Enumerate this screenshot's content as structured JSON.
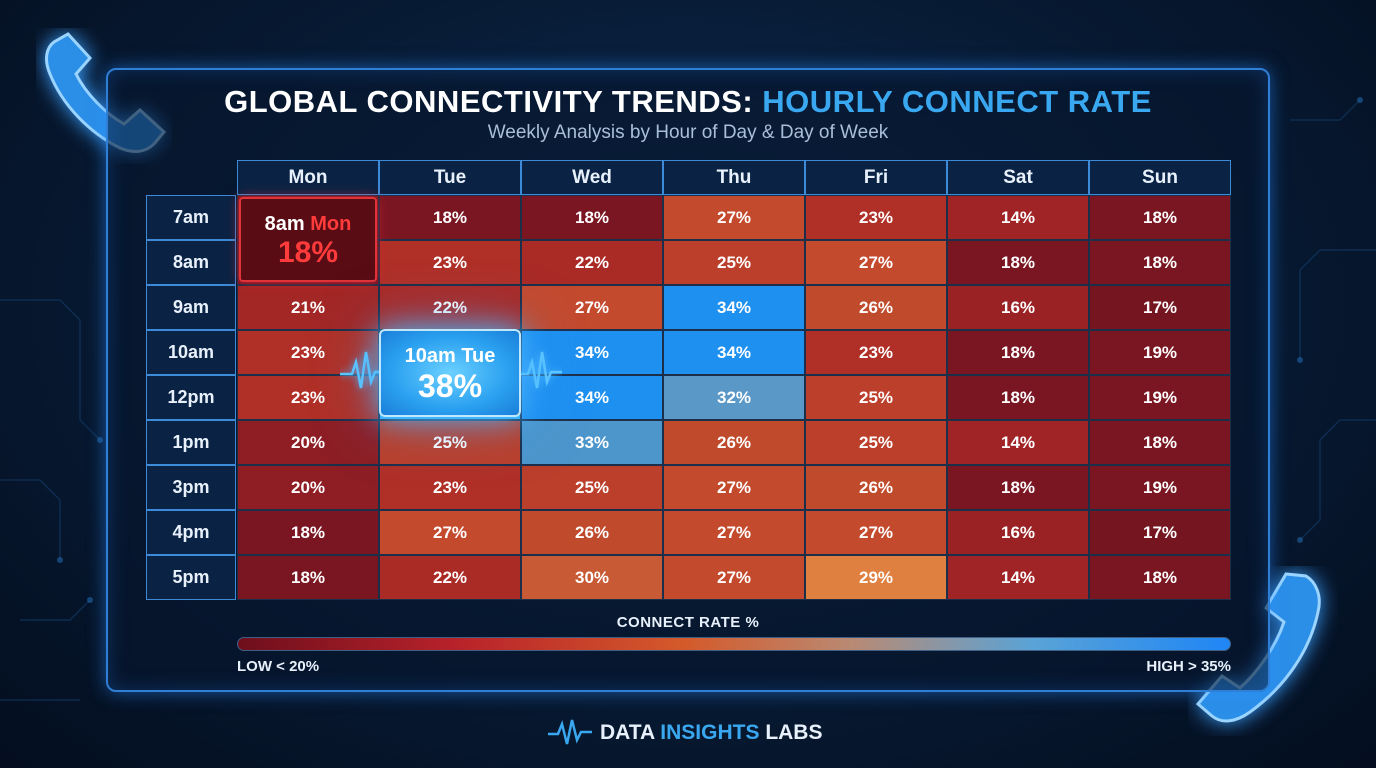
{
  "header": {
    "title_main": "GLOBAL CONNECTIVITY TRENDS:",
    "title_highlight": "HOURLY CONNECT RATE",
    "subtitle": "Weekly Analysis by Hour of Day & Day of Week"
  },
  "chart_data": {
    "type": "heatmap",
    "title": "GLOBAL CONNECTIVITY TRENDS: HOURLY CONNECT RATE",
    "subtitle": "Weekly Analysis by Hour of Day & Day of Week",
    "columns": [
      "Mon",
      "Tue",
      "Wed",
      "Thu",
      "Fri",
      "Sat",
      "Sun"
    ],
    "rows": [
      "7am",
      "8am",
      "9am",
      "10am",
      "12pm",
      "1pm",
      "3pm",
      "4pm",
      "5pm"
    ],
    "unit": "%",
    "values": [
      [
        18,
        18,
        18,
        27,
        23,
        14,
        18
      ],
      [
        18,
        23,
        22,
        25,
        27,
        18,
        18
      ],
      [
        21,
        22,
        27,
        34,
        26,
        16,
        17
      ],
      [
        23,
        38,
        34,
        34,
        23,
        18,
        19
      ],
      [
        23,
        38,
        34,
        32,
        25,
        18,
        19
      ],
      [
        20,
        25,
        33,
        26,
        25,
        14,
        18
      ],
      [
        20,
        23,
        25,
        27,
        26,
        18,
        19
      ],
      [
        18,
        27,
        26,
        27,
        27,
        16,
        17
      ],
      [
        18,
        22,
        30,
        27,
        29,
        14,
        18
      ]
    ],
    "callouts": [
      {
        "label_time": "8am",
        "label_day": "Mon",
        "value": "18%",
        "color": "#ff3b3b"
      },
      {
        "label": "10am Tue",
        "value": "38%",
        "color": "#2aa0f0"
      }
    ],
    "legend": {
      "title": "CONNECT RATE %",
      "low_label": "LOW < 20%",
      "high_label": "HIGH > 35%",
      "placement": "bottom"
    }
  },
  "brand": {
    "name_part1": "DATA",
    "name_part2": "INSIGHTS",
    "name_part3": "LABS",
    "icon": "pulse-line-icon"
  },
  "colors": {
    "accent": "#3aa8f0",
    "alert": "#ff3b3b",
    "frame": "#2f7fd6"
  }
}
